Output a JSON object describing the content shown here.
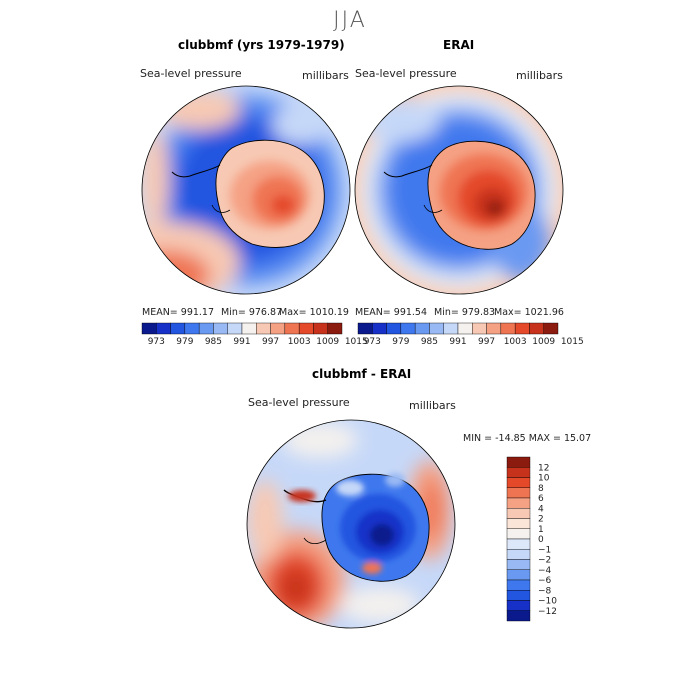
{
  "title": "JJA",
  "colors": {
    "land_outline": "#000000",
    "palette": [
      "#0a1a8c",
      "#1630c8",
      "#2255e0",
      "#3f78ee",
      "#6a99f2",
      "#99b9f4",
      "#c6d8f8",
      "#f4f1ee",
      "#f7c9b4",
      "#f5a184",
      "#ef7552",
      "#e4492a",
      "#c7321c",
      "#8b1a0f"
    ]
  },
  "panels": {
    "model": {
      "title": "clubbmf (yrs 1979-1979)",
      "variable": "Sea-level pressure",
      "units": "millibars",
      "mean_text": "MEAN= 991.17",
      "min_text": "Min= 976.87",
      "max_text": "Max= 1010.19"
    },
    "obs": {
      "title": "ERAI",
      "variable": "Sea-level pressure",
      "units": "millibars",
      "mean_text": "MEAN= 991.54",
      "min_text": "Min= 979.83",
      "max_text": "Max= 1021.96"
    },
    "diff": {
      "title": "clubbmf - ERAI",
      "variable": "Sea-level pressure",
      "units": "millibars",
      "minmax_text": "MIN = -14.85 MAX =  15.07"
    }
  },
  "chart_data": [
    {
      "type": "heatmap",
      "projection": "south polar stereographic",
      "title": "clubbmf (yrs 1979-1979)",
      "variable": "Sea-level pressure",
      "units": "millibars",
      "mean": 991.17,
      "min": 976.87,
      "max": 1010.19,
      "colorbar_ticks": [
        "973",
        "979",
        "985",
        "991",
        "997",
        "1003",
        "1009",
        "1015"
      ]
    },
    {
      "type": "heatmap",
      "projection": "south polar stereographic",
      "title": "ERAI",
      "variable": "Sea-level pressure",
      "units": "millibars",
      "mean": 991.54,
      "min": 979.83,
      "max": 1021.96,
      "colorbar_ticks": [
        "973",
        "979",
        "985",
        "991",
        "997",
        "1003",
        "1009",
        "1015"
      ]
    },
    {
      "type": "heatmap",
      "projection": "south polar stereographic",
      "title": "clubbmf - ERAI",
      "variable": "Sea-level pressure",
      "units": "millibars",
      "min": -14.85,
      "max": 15.07,
      "colorbar_ticks": [
        "12",
        "10",
        "8",
        "6",
        "4",
        "2",
        "1",
        "0",
        "−1",
        "−2",
        "−4",
        "−6",
        "−8",
        "−10",
        "−12"
      ]
    }
  ]
}
